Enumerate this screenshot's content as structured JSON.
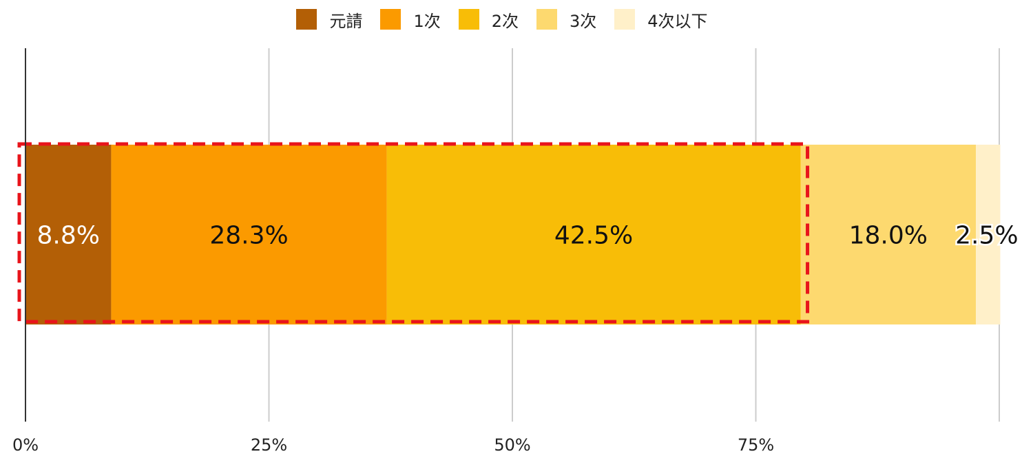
{
  "chart_data": {
    "type": "bar",
    "orientation": "horizontal",
    "stacked": true,
    "categories": [
      ""
    ],
    "series": [
      {
        "name": "元請",
        "values": [
          8.8
        ],
        "label": "8.8%",
        "color": "#B35F06",
        "label_color": "#ffffff"
      },
      {
        "name": "1次",
        "values": [
          28.3
        ],
        "label": "28.3%",
        "color": "#FB9A00",
        "label_color": "#111111"
      },
      {
        "name": "2次",
        "values": [
          42.5
        ],
        "label": "42.5%",
        "color": "#F8BD07",
        "label_color": "#111111"
      },
      {
        "name": "3次",
        "values": [
          18.0
        ],
        "label": "18.0%",
        "color": "#FDD96F",
        "label_color": "#111111"
      },
      {
        "name": "4次以下",
        "values": [
          2.5
        ],
        "label": "2.5%",
        "color": "#FFF0C9",
        "label_color": "#111111"
      }
    ],
    "xlim": [
      0,
      100
    ],
    "x_ticks": [
      {
        "value": 0,
        "label": "0%"
      },
      {
        "value": 25,
        "label": "25%"
      },
      {
        "value": 50,
        "label": "50%"
      },
      {
        "value": 75,
        "label": "75%"
      },
      {
        "value": 100,
        "label": ""
      }
    ],
    "grid": true,
    "legend_position": "top-center",
    "title": "",
    "xlabel": "",
    "ylabel": "",
    "annotations": [
      {
        "type": "dashed-highlight-box",
        "from": 0,
        "to": 79.6,
        "color": "#E8141B"
      }
    ]
  }
}
